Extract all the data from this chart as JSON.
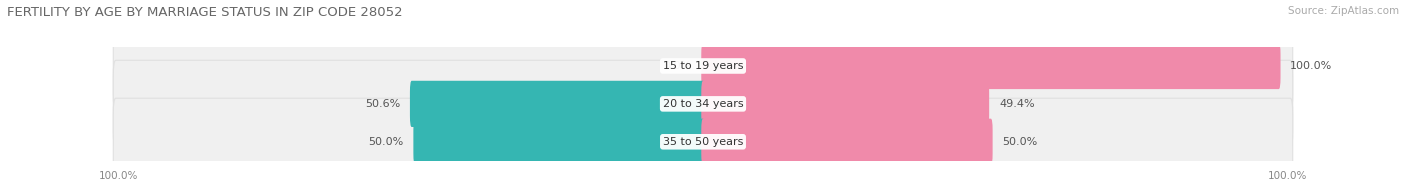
{
  "title": "FERTILITY BY AGE BY MARRIAGE STATUS IN ZIP CODE 28052",
  "source": "Source: ZipAtlas.com",
  "categories": [
    "15 to 19 years",
    "20 to 34 years",
    "35 to 50 years"
  ],
  "married": [
    0.0,
    50.6,
    50.0
  ],
  "unmarried": [
    100.0,
    49.4,
    50.0
  ],
  "married_color": "#35b6b2",
  "unmarried_color": "#f08aaa",
  "title_fontsize": 9.5,
  "source_fontsize": 7.5,
  "label_fontsize": 8,
  "category_fontsize": 8,
  "legend_fontsize": 8.5,
  "axis_label_fontsize": 7.5,
  "background_color": "#ffffff",
  "row_bg_color": "#f0f0f0",
  "row_border_color": "#e0e0e0"
}
